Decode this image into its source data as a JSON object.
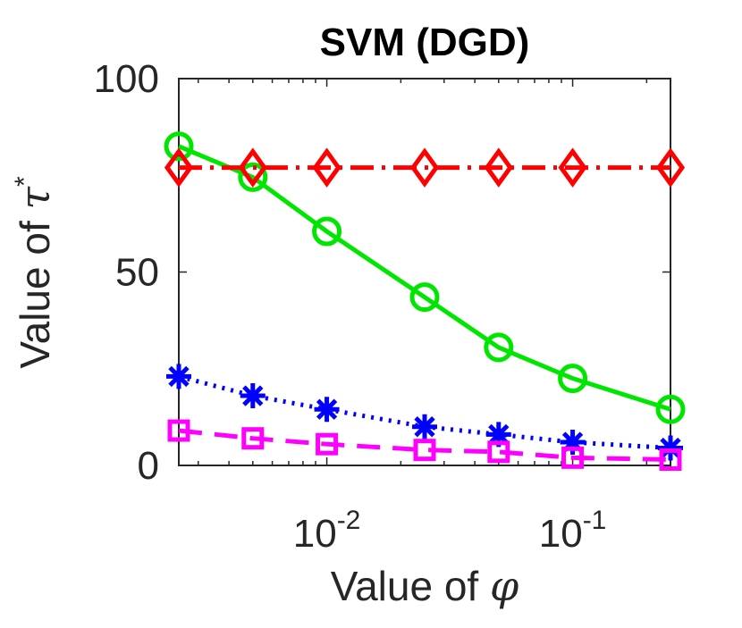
{
  "chart_data": {
    "type": "line",
    "title": "SVM (DGD)",
    "xlabel": {
      "prefix": "Value of ",
      "symbol": "φ"
    },
    "ylabel": {
      "prefix": "Value of ",
      "symbol": "τ",
      "superscript": "*"
    },
    "x_scale": "log",
    "xlim": [
      0.0025,
      0.25
    ],
    "ylim": [
      0,
      100
    ],
    "x_ticks": [
      {
        "value": 0.01,
        "base": "10",
        "exponent": "-2"
      },
      {
        "value": 0.1,
        "base": "10",
        "exponent": "-1"
      }
    ],
    "y_ticks": [
      {
        "value": 0,
        "label": "0"
      },
      {
        "value": 50,
        "label": "50"
      },
      {
        "value": 100,
        "label": "100"
      }
    ],
    "x": [
      0.0025,
      0.005,
      0.01,
      0.025,
      0.05,
      0.1,
      0.25
    ],
    "series": [
      {
        "color": "#00e600",
        "line_style": "solid",
        "marker": "circle",
        "values": [
          82.5,
          74.5,
          60.5,
          43.5,
          30.5,
          22.5,
          14.5
        ]
      },
      {
        "color": "#ff0000",
        "line_style": "dashdot",
        "marker": "diamond",
        "values": [
          77,
          77,
          77,
          77,
          77,
          77,
          77
        ]
      },
      {
        "color": "#0000ff",
        "line_style": "dotted",
        "marker": "asterisk",
        "values": [
          23,
          18,
          14.5,
          10,
          8,
          6,
          4.5
        ]
      },
      {
        "color": "#ff00ff",
        "line_style": "dashed",
        "marker": "square",
        "values": [
          9,
          7,
          5.5,
          4,
          3.5,
          2,
          1.5
        ]
      }
    ],
    "grid": false,
    "legend": "none"
  }
}
